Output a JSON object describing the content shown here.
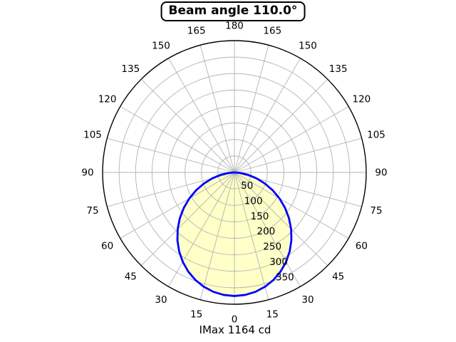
{
  "chart_data": {
    "type": "line",
    "subtype": "polar-photometric",
    "title": "Beam angle 110.0°",
    "annotation": "IMax 1164 cd",
    "beam_angle_deg": 110.0,
    "imax_cd": 1164,
    "orientation": "0 deg at bottom, increasing to 180 deg at top, mirrored on both sides",
    "angle_tick_step_deg": 15,
    "angle_tick_labels": [
      "0",
      "15",
      "30",
      "45",
      "60",
      "75",
      "90",
      "105",
      "120",
      "135",
      "150",
      "165",
      "180"
    ],
    "radial_ticks": [
      50,
      100,
      150,
      200,
      250,
      300,
      350
    ],
    "radial_tick_labels": [
      "50",
      "100",
      "150",
      "200",
      "250",
      "300",
      "350"
    ],
    "radial_max": 400,
    "radial_label_angle_deg": 22.5,
    "grid": true,
    "legend": false,
    "series": [
      {
        "name": "luminous-intensity",
        "angles_deg": [
          -90,
          -85,
          -80,
          -75,
          -70,
          -65,
          -60,
          -55,
          -50,
          -45,
          -40,
          -35,
          -30,
          -25,
          -20,
          -15,
          -10,
          -5,
          0,
          5,
          10,
          15,
          20,
          25,
          30,
          35,
          40,
          45,
          50,
          55,
          60,
          65,
          70,
          75,
          80,
          85,
          90
        ],
        "values": [
          0,
          17.9,
          42.3,
          69.5,
          98.4,
          128.2,
          158.0,
          187.5,
          216.2,
          243.4,
          269.0,
          292.4,
          313.4,
          331.7,
          347.0,
          359.1,
          367.9,
          373.2,
          375.0,
          373.2,
          367.9,
          359.1,
          347.0,
          331.7,
          313.4,
          292.4,
          269.0,
          243.4,
          216.2,
          187.5,
          158.0,
          128.2,
          98.4,
          69.5,
          42.3,
          17.9,
          0
        ]
      }
    ],
    "colors": {
      "curve": "#0000ff",
      "fill": "#ffffc8",
      "grid": "#b3b3b3",
      "axis": "#000000",
      "text": "#000000",
      "background": "#ffffff"
    }
  }
}
